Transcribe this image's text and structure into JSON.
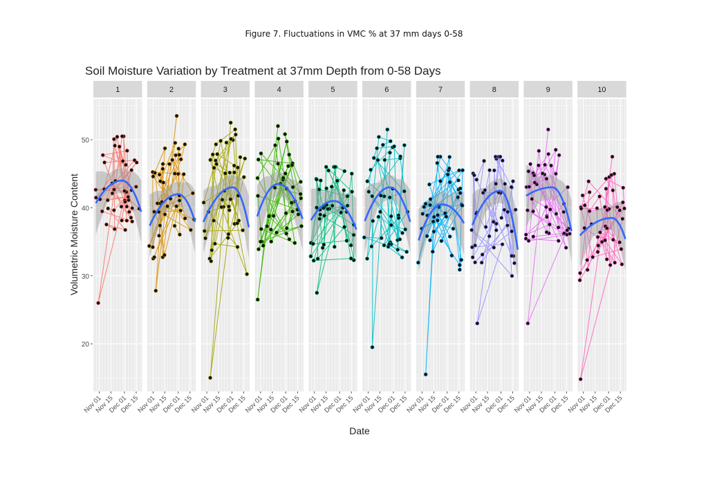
{
  "caption": "Figure 7. Fluctuations in VMC % at 37 mm days 0-58",
  "chart_data": {
    "type": "scatter",
    "title": "Soil Moisture Variation by Treatment at 37mm Depth from 0-58 Days",
    "xlabel": "Date",
    "ylabel": "Volumetric Moisture Content",
    "ylim": [
      13,
      56
    ],
    "yticks": [
      20,
      30,
      40,
      50
    ],
    "xticks": [
      "Nov 01",
      "Nov 15",
      "Dec 01",
      "Dec 15"
    ],
    "x_range": [
      "2018-10-25",
      "2018-12-22"
    ],
    "facets": [
      "1",
      "2",
      "3",
      "4",
      "5",
      "6",
      "7",
      "8",
      "9",
      "10"
    ],
    "colors": [
      "#F8766D",
      "#D89000",
      "#A3A500",
      "#39B600",
      "#00BF7D",
      "#00BFC4",
      "#00B0F6",
      "#9590FF",
      "#E76BF3",
      "#FF62BC"
    ],
    "smooth_color": "#3366FF",
    "ribbon_color": "#999999",
    "panel_background": "#EBEBEB",
    "strip_background": "#D9D9D9",
    "grid": true,
    "series": [
      {
        "name": "1",
        "peak": 44.0,
        "peak_date": "2018-11-28",
        "start": 40.0,
        "end": 39.0,
        "spread": 4.5,
        "ymin": 26.0,
        "ymax": 50.5
      },
      {
        "name": "2",
        "peak": 42.0,
        "peak_date": "2018-12-01",
        "start": 36.5,
        "end": 37.5,
        "spread": 5.0,
        "ymin": 27.8,
        "ymax": 53.5
      },
      {
        "name": "3",
        "peak": 43.0,
        "peak_date": "2018-12-02",
        "start": 37.0,
        "end": 36.5,
        "spread": 5.5,
        "ymin": 15.0,
        "ymax": 52.5
      },
      {
        "name": "4",
        "peak": 43.5,
        "peak_date": "2018-11-22",
        "start": 37.5,
        "end": 38.0,
        "spread": 5.0,
        "ymin": 26.5,
        "ymax": 52.0
      },
      {
        "name": "5",
        "peak": 41.0,
        "peak_date": "2018-11-24",
        "start": 37.5,
        "end": 36.5,
        "spread": 4.5,
        "ymin": 27.5,
        "ymax": 46.0
      },
      {
        "name": "6",
        "peak": 43.0,
        "peak_date": "2018-11-27",
        "start": 37.0,
        "end": 37.5,
        "spread": 5.5,
        "ymin": 19.5,
        "ymax": 51.5
      },
      {
        "name": "7",
        "peak": 40.5,
        "peak_date": "2018-11-25",
        "start": 34.0,
        "end": 37.5,
        "spread": 5.0,
        "ymin": 15.5,
        "ymax": 47.5
      },
      {
        "name": "8",
        "peak": 42.5,
        "peak_date": "2018-11-30",
        "start": 36.5,
        "end": 33.0,
        "spread": 5.5,
        "ymin": 23.0,
        "ymax": 47.5
      },
      {
        "name": "9",
        "peak": 43.0,
        "peak_date": "2018-11-28",
        "start": 41.5,
        "end": 36.0,
        "spread": 4.5,
        "ymin": 23.0,
        "ymax": 51.5
      },
      {
        "name": "10",
        "peak": 38.5,
        "peak_date": "2018-12-05",
        "start": 35.5,
        "end": 35.0,
        "spread": 4.5,
        "ymin": 14.8,
        "ymax": 47.5
      }
    ]
  }
}
